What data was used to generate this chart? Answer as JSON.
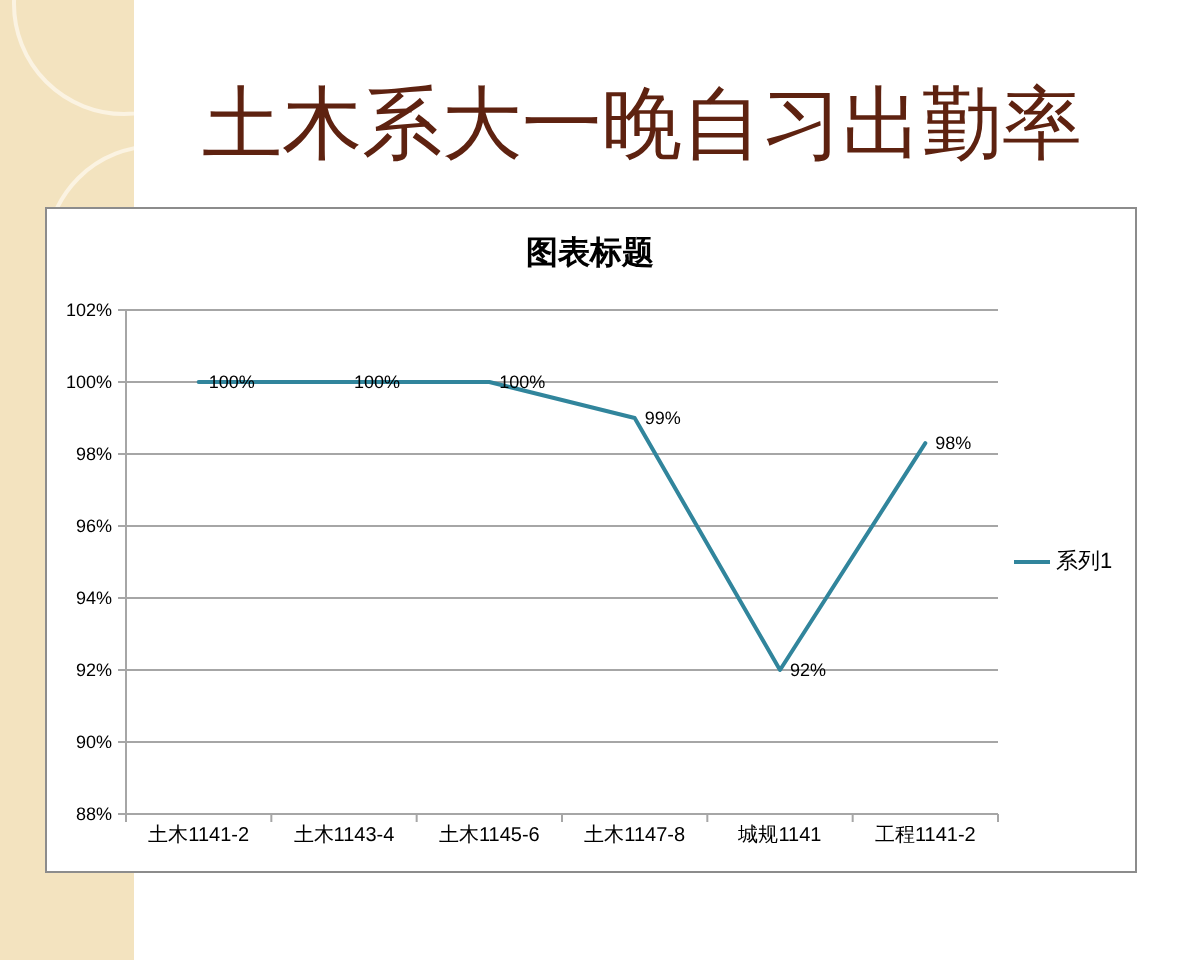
{
  "chart_data": {
    "type": "line",
    "title": "土木系大一晚自习出勤率",
    "subtitle": "图表标题",
    "categories": [
      "土木1141-2",
      "土木1143-4",
      "土木1145-6",
      "土木1147-8",
      "城规1141",
      "工程1141-2"
    ],
    "series": [
      {
        "name": "系列1",
        "color": "#31859c",
        "values": [
          100,
          100,
          100,
          99,
          92,
          98.3
        ],
        "value_labels": [
          "100%",
          "100%",
          "100%",
          "99%",
          "92%",
          "98%"
        ]
      }
    ],
    "ylim": [
      88,
      102
    ],
    "yticks": [
      {
        "value": 88,
        "label": "88%"
      },
      {
        "value": 90,
        "label": "90%"
      },
      {
        "value": 92,
        "label": "92%"
      },
      {
        "value": 94,
        "label": "94%"
      },
      {
        "value": 96,
        "label": "96%"
      },
      {
        "value": 98,
        "label": "98%"
      },
      {
        "value": 100,
        "label": "100%"
      },
      {
        "value": 102,
        "label": "102%"
      }
    ],
    "grid": "y",
    "legend": "right"
  }
}
